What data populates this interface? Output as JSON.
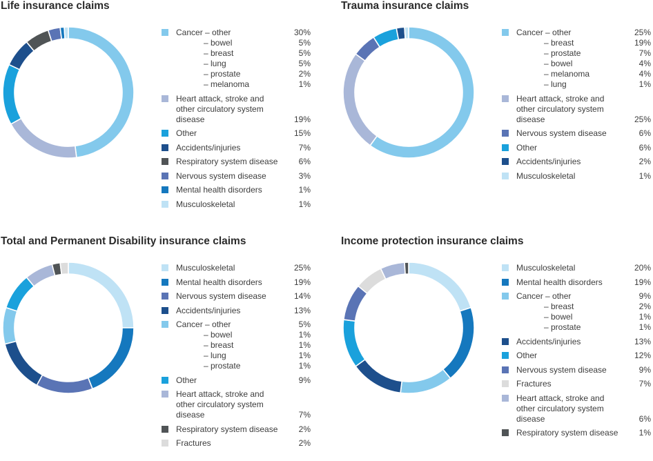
{
  "colors": {
    "light_blue": "#83c9ec",
    "lavender": "#a9b7d8",
    "cyan": "#1aa1dc",
    "dark_navy": "#1d4f8c",
    "dark_gray": "#505456",
    "slate_blue": "#5a74b5",
    "mid_blue": "#1578be",
    "pale_blue": "#bfe2f5",
    "light_gray": "#dcdcdc"
  },
  "chart_data": [
    {
      "type": "pie",
      "title": "Life insurance claims",
      "categories": [
        "Cancer",
        "Heart attack, stroke and other circulatory system disease",
        "Other",
        "Accidents/injuries",
        "Respiratory system disease",
        "Nervous system disease",
        "Mental health disorders",
        "Musculoskeletal"
      ],
      "values": [
        48,
        19,
        15,
        7,
        6,
        3,
        1,
        1
      ],
      "slice_colors": [
        "light_blue",
        "lavender",
        "cyan",
        "dark_navy",
        "dark_gray",
        "slate_blue",
        "mid_blue",
        "pale_blue"
      ],
      "legend": [
        {
          "label": "Cancer – other",
          "value": "30%",
          "color": "light_blue"
        },
        {
          "label": "– bowel",
          "value": "5%",
          "sub": true
        },
        {
          "label": "– breast",
          "value": "5%",
          "sub": true
        },
        {
          "label": "– lung",
          "value": "5%",
          "sub": true
        },
        {
          "label": "– prostate",
          "value": "2%",
          "sub": true
        },
        {
          "label": "– melanoma",
          "value": "1%",
          "sub": true
        },
        {
          "label": "Heart attack, stroke and other circulatory system disease",
          "value": "19%",
          "color": "lavender"
        },
        {
          "label": "Other",
          "value": "15%",
          "color": "cyan"
        },
        {
          "label": "Accidents/injuries",
          "value": "7%",
          "color": "dark_navy"
        },
        {
          "label": "Respiratory system disease",
          "value": "6%",
          "color": "dark_gray"
        },
        {
          "label": "Nervous system disease",
          "value": "3%",
          "color": "slate_blue"
        },
        {
          "label": "Mental health disorders",
          "value": "1%",
          "color": "mid_blue"
        },
        {
          "label": "Musculoskeletal",
          "value": "1%",
          "color": "pale_blue"
        }
      ]
    },
    {
      "type": "pie",
      "title": "Trauma insurance claims",
      "categories": [
        "Cancer",
        "Heart attack, stroke and other circulatory system disease",
        "Nervous system disease",
        "Other",
        "Accidents/injuries",
        "Musculoskeletal"
      ],
      "values": [
        60,
        25,
        6,
        6,
        2,
        1
      ],
      "slice_colors": [
        "light_blue",
        "lavender",
        "slate_blue",
        "cyan",
        "dark_navy",
        "pale_blue"
      ],
      "legend": [
        {
          "label": "Cancer – other",
          "value": "25%",
          "color": "light_blue"
        },
        {
          "label": "– breast",
          "value": "19%",
          "sub": true
        },
        {
          "label": "– prostate",
          "value": "7%",
          "sub": true
        },
        {
          "label": "– bowel",
          "value": "4%",
          "sub": true
        },
        {
          "label": "– melanoma",
          "value": "4%",
          "sub": true
        },
        {
          "label": "– lung",
          "value": "1%",
          "sub": true
        },
        {
          "label": "Heart attack, stroke and other circulatory system disease",
          "value": "25%",
          "color": "lavender"
        },
        {
          "label": "Nervous system disease",
          "value": "6%",
          "color": "slate_blue"
        },
        {
          "label": "Other",
          "value": "6%",
          "color": "cyan"
        },
        {
          "label": "Accidents/injuries",
          "value": "2%",
          "color": "dark_navy"
        },
        {
          "label": "Musculoskeletal",
          "value": "1%",
          "color": "pale_blue"
        }
      ]
    },
    {
      "type": "pie",
      "title": "Total and Permanent Disability insurance claims",
      "categories": [
        "Musculoskeletal",
        "Mental health disorders",
        "Nervous system disease",
        "Accidents/injuries",
        "Cancer",
        "Other",
        "Heart attack, stroke and other circulatory system disease",
        "Respiratory system disease",
        "Fractures"
      ],
      "values": [
        25,
        19,
        14,
        13,
        9,
        9,
        7,
        2,
        2
      ],
      "slice_colors": [
        "pale_blue",
        "mid_blue",
        "slate_blue",
        "dark_navy",
        "light_blue",
        "cyan",
        "lavender",
        "dark_gray",
        "light_gray"
      ],
      "legend": [
        {
          "label": "Musculoskeletal",
          "value": "25%",
          "color": "pale_blue"
        },
        {
          "label": "Mental health disorders",
          "value": "19%",
          "color": "mid_blue"
        },
        {
          "label": "Nervous system disease",
          "value": "14%",
          "color": "slate_blue"
        },
        {
          "label": "Accidents/injuries",
          "value": "13%",
          "color": "dark_navy"
        },
        {
          "label": "Cancer – other",
          "value": "5%",
          "color": "light_blue"
        },
        {
          "label": "– bowel",
          "value": "1%",
          "sub": true
        },
        {
          "label": "– breast",
          "value": "1%",
          "sub": true
        },
        {
          "label": "– lung",
          "value": "1%",
          "sub": true
        },
        {
          "label": "– prostate",
          "value": "1%",
          "sub": true
        },
        {
          "label": "Other",
          "value": "9%",
          "color": "cyan"
        },
        {
          "label": "Heart attack, stroke and other circulatory system disease",
          "value": "7%",
          "color": "lavender"
        },
        {
          "label": "Respiratory system disease",
          "value": "2%",
          "color": "dark_gray"
        },
        {
          "label": "Fractures",
          "value": "2%",
          "color": "light_gray"
        }
      ]
    },
    {
      "type": "pie",
      "title": "Income protection insurance claims",
      "categories": [
        "Musculoskeletal",
        "Mental health disorders",
        "Cancer",
        "Accidents/injuries",
        "Other",
        "Nervous system disease",
        "Fractures",
        "Heart attack, stroke and other circulatory system disease",
        "Respiratory system disease"
      ],
      "values": [
        20,
        19,
        13,
        13,
        12,
        9,
        7,
        6,
        1
      ],
      "slice_colors": [
        "pale_blue",
        "mid_blue",
        "light_blue",
        "dark_navy",
        "cyan",
        "slate_blue",
        "light_gray",
        "lavender",
        "dark_gray"
      ],
      "legend": [
        {
          "label": "Musculoskeletal",
          "value": "20%",
          "color": "pale_blue"
        },
        {
          "label": "Mental health disorders",
          "value": "19%",
          "color": "mid_blue"
        },
        {
          "label": "Cancer – other",
          "value": "9%",
          "color": "light_blue"
        },
        {
          "label": "– breast",
          "value": "2%",
          "sub": true
        },
        {
          "label": "– bowel",
          "value": "1%",
          "sub": true
        },
        {
          "label": "– prostate",
          "value": "1%",
          "sub": true
        },
        {
          "label": "Accidents/injuries",
          "value": "13%",
          "color": "dark_navy"
        },
        {
          "label": "Other",
          "value": "12%",
          "color": "cyan"
        },
        {
          "label": "Nervous system disease",
          "value": "9%",
          "color": "slate_blue"
        },
        {
          "label": "Fractures",
          "value": "7%",
          "color": "light_gray"
        },
        {
          "label": "Heart attack, stroke and other circulatory system disease",
          "value": "6%",
          "color": "lavender"
        },
        {
          "label": "Respiratory system disease",
          "value": "1%",
          "color": "dark_gray"
        }
      ]
    }
  ]
}
